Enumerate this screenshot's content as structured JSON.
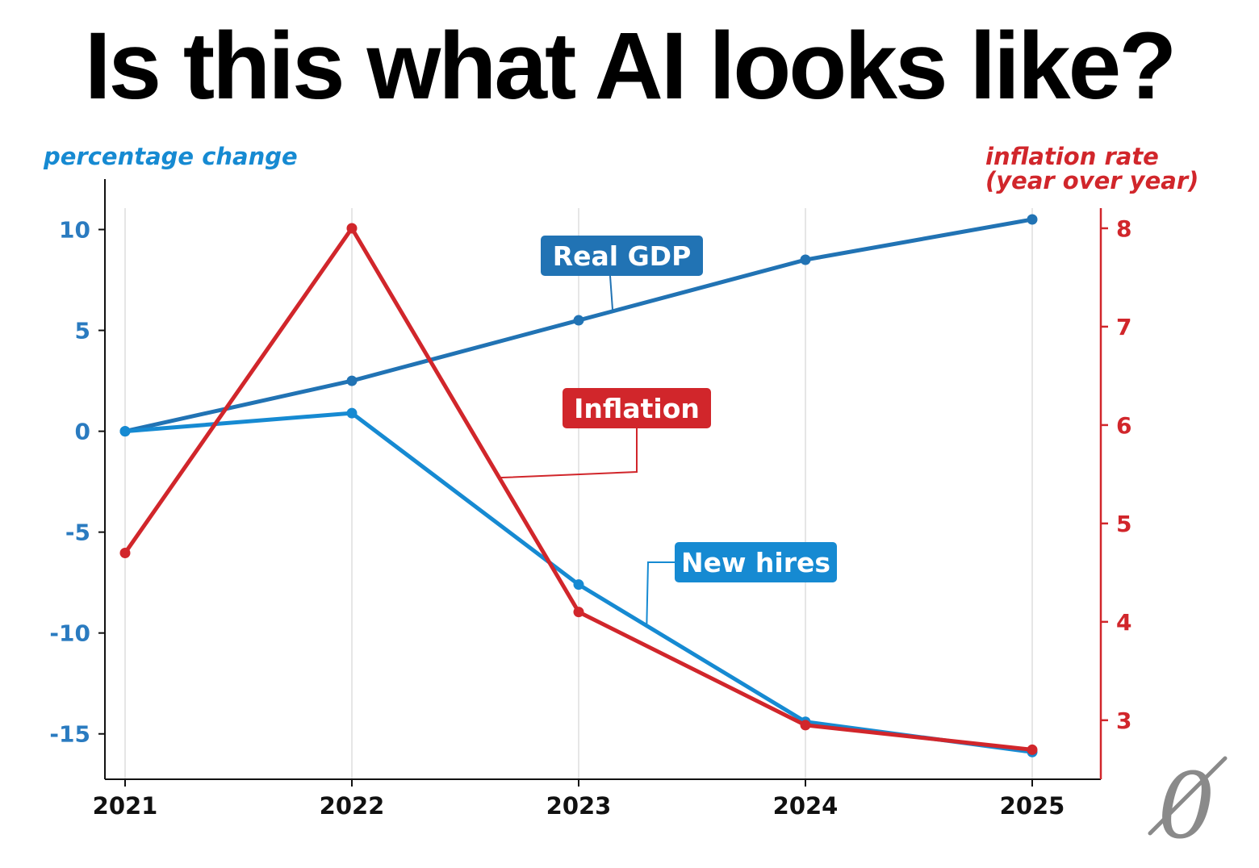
{
  "headline": "Is this what AI looks like?",
  "logo": {
    "text": "0"
  },
  "chart_data": {
    "type": "line",
    "title": "Is this what AI looks like?",
    "categories": [
      "2021",
      "2022",
      "2023",
      "2024",
      "2025"
    ],
    "left_axis": {
      "label": "percentage change",
      "ticks": [
        10,
        5,
        0,
        -5,
        -10,
        -15
      ],
      "tick_labels": [
        "10",
        "5",
        "0",
        "-5",
        "-10",
        "-15"
      ],
      "range": [
        -17.25,
        12.5
      ]
    },
    "right_axis": {
      "label_lines": [
        "inflation rate",
        "(year over year)"
      ],
      "ticks": [
        8,
        7,
        6,
        5,
        4,
        3
      ],
      "tick_labels": [
        "8",
        "7",
        "6",
        "5",
        "4",
        "3"
      ],
      "range": [
        2.4,
        8.5
      ]
    },
    "series": [
      {
        "name": "Real GDP",
        "axis": "left",
        "color": "#2173b4",
        "values": [
          0.0,
          2.5,
          5.5,
          8.5,
          10.5
        ],
        "label_anchor_index": 2.15
      },
      {
        "name": "New hires",
        "axis": "left",
        "color": "#168ad2",
        "values": [
          0.0,
          0.9,
          -7.6,
          -14.4,
          -15.9
        ],
        "label_anchor_index": 2.3
      },
      {
        "name": "Inflation",
        "axis": "right",
        "color": "#d1262b",
        "values": [
          4.7,
          8.0,
          4.1,
          2.95,
          2.7
        ],
        "label_anchor_index": 1.65
      }
    ],
    "grid": {
      "vertical": true,
      "horizontal": false
    }
  }
}
